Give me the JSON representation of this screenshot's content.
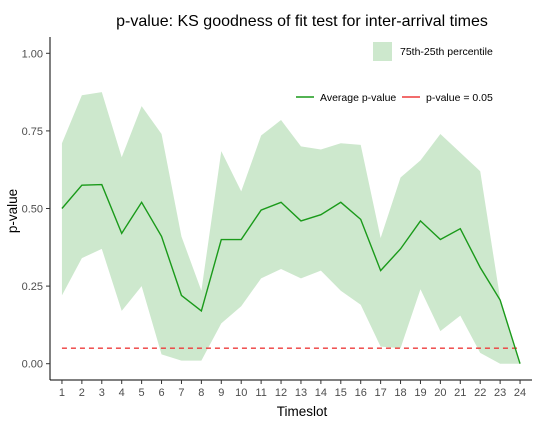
{
  "chart_data": {
    "type": "line",
    "title": "p-value: KS goodness of fit test for inter-arrival times",
    "xlabel": "Timeslot",
    "ylabel": "p-value",
    "x": [
      1,
      2,
      3,
      4,
      5,
      6,
      7,
      8,
      9,
      10,
      11,
      12,
      13,
      14,
      15,
      16,
      17,
      18,
      19,
      20,
      21,
      22,
      23,
      24
    ],
    "xticks": [
      "1",
      "2",
      "3",
      "4",
      "5",
      "6",
      "7",
      "8",
      "9",
      "10",
      "11",
      "12",
      "13",
      "14",
      "15",
      "16",
      "17",
      "18",
      "19",
      "20",
      "21",
      "22",
      "23",
      "24"
    ],
    "ylim": [
      0,
      1.05
    ],
    "yticks": [
      "0.00",
      "0.25",
      "0.50",
      "0.75",
      "1.00"
    ],
    "ytick_values": [
      0,
      0.25,
      0.5,
      0.75,
      1.0
    ],
    "series": [
      {
        "name": "Average p-value",
        "color": "#1a9a1a",
        "values": [
          0.5,
          0.575,
          0.577,
          0.42,
          0.52,
          0.41,
          0.22,
          0.17,
          0.4,
          0.4,
          0.495,
          0.52,
          0.46,
          0.48,
          0.52,
          0.465,
          0.3,
          0.37,
          0.46,
          0.4,
          0.435,
          0.31,
          0.205,
          0.0
        ]
      }
    ],
    "band": {
      "name": "75th-25th percentile",
      "color": "#cde8cd",
      "upper": [
        0.71,
        0.865,
        0.875,
        0.665,
        0.83,
        0.74,
        0.41,
        0.235,
        0.685,
        0.555,
        0.735,
        0.785,
        0.7,
        0.69,
        0.71,
        0.705,
        0.405,
        0.6,
        0.655,
        0.74,
        0.68,
        0.62,
        0.21,
        0.0
      ],
      "lower": [
        0.22,
        0.34,
        0.37,
        0.17,
        0.25,
        0.03,
        0.01,
        0.01,
        0.13,
        0.185,
        0.275,
        0.305,
        0.275,
        0.3,
        0.235,
        0.19,
        0.055,
        0.05,
        0.24,
        0.105,
        0.155,
        0.035,
        0.0,
        0.0
      ]
    },
    "reference_line": {
      "name": "p-value = 0.05",
      "value": 0.05,
      "color": "#ee3b3b",
      "style": "dashed"
    },
    "legend_position": "top-right",
    "grid": false
  }
}
